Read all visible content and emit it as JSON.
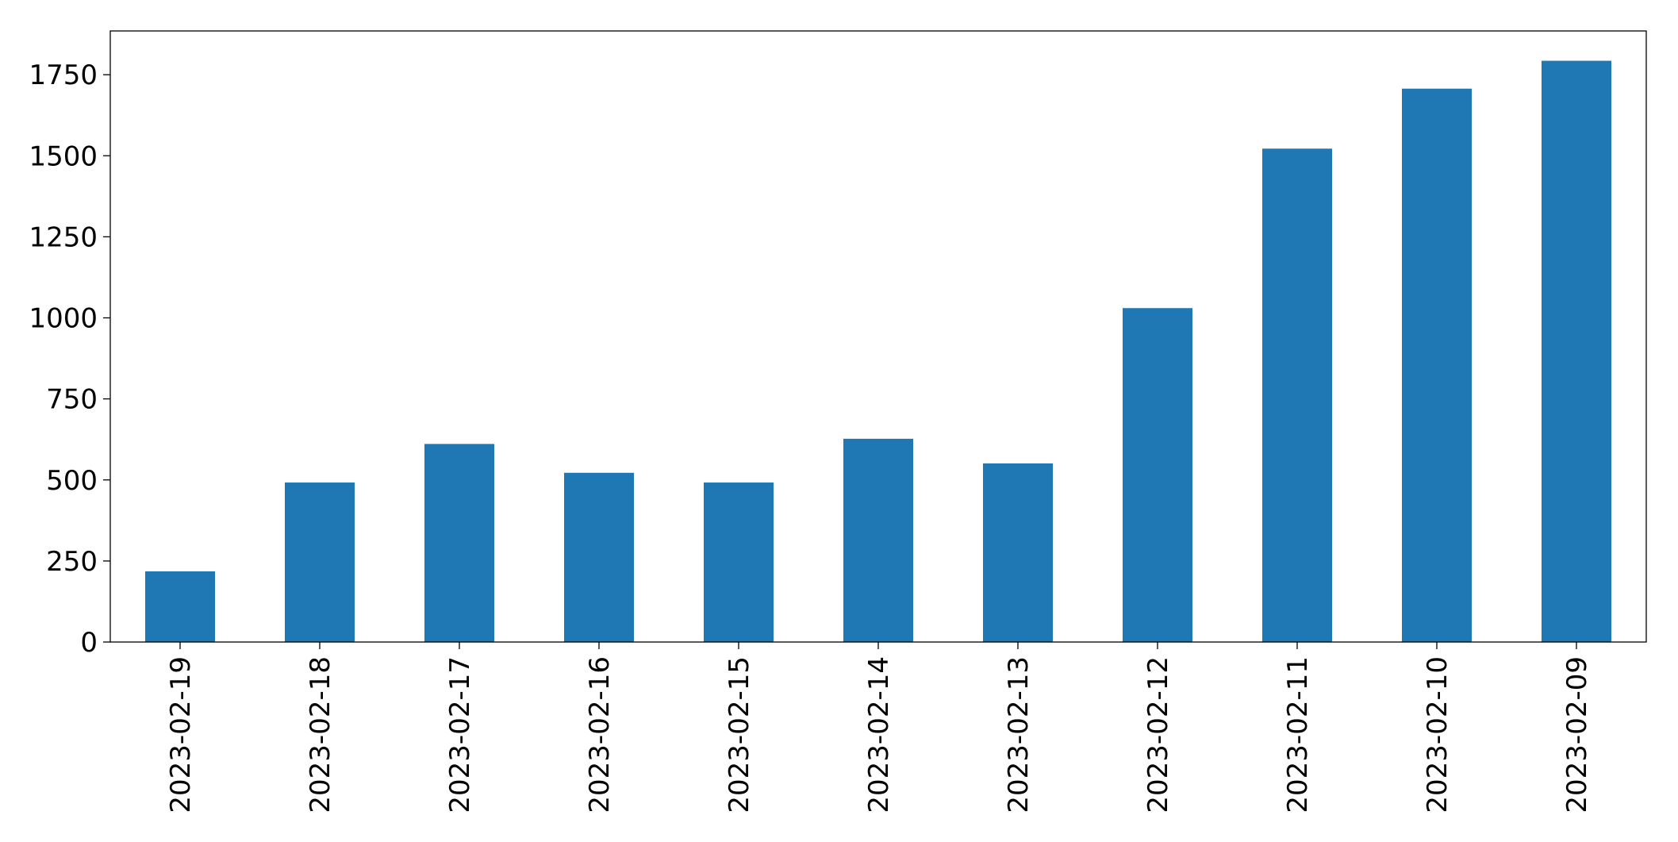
{
  "chart_data": {
    "type": "bar",
    "categories": [
      "2023-02-19",
      "2023-02-18",
      "2023-02-17",
      "2023-02-16",
      "2023-02-15",
      "2023-02-14",
      "2023-02-13",
      "2023-02-12",
      "2023-02-11",
      "2023-02-10",
      "2023-02-09"
    ],
    "values": [
      218,
      492,
      611,
      522,
      492,
      627,
      551,
      1030,
      1522,
      1707,
      1793
    ],
    "color": "#1f77b4",
    "ylim": [
      0,
      1885
    ],
    "yticks": [
      0,
      250,
      500,
      750,
      1000,
      1250,
      1500,
      1750
    ],
    "grid": false
  }
}
